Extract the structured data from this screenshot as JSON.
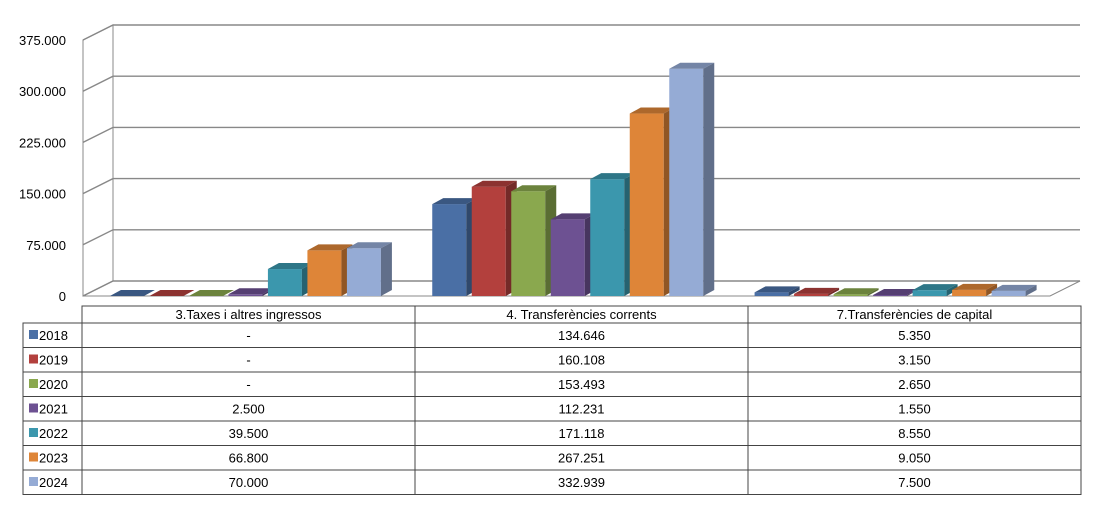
{
  "chart_data": {
    "type": "bar",
    "categories": [
      "3.Taxes i altres ingressos",
      "4. Transferències corrents",
      "7.Transferències de capital"
    ],
    "series": [
      {
        "name": "2018",
        "color": "#4a6fa5",
        "values": [
          0,
          134646,
          5350
        ],
        "labels": [
          "-",
          "134.646",
          "5.350"
        ]
      },
      {
        "name": "2019",
        "color": "#b3403d",
        "values": [
          0,
          160108,
          3150
        ],
        "labels": [
          "-",
          "160.108",
          "3.150"
        ]
      },
      {
        "name": "2020",
        "color": "#8aa84e",
        "values": [
          0,
          153493,
          2650
        ],
        "labels": [
          "-",
          "153.493",
          "2.650"
        ]
      },
      {
        "name": "2021",
        "color": "#6d5192",
        "values": [
          2500,
          112231,
          1550
        ],
        "labels": [
          "2.500",
          "112.231",
          "1.550"
        ]
      },
      {
        "name": "2022",
        "color": "#3b97ad",
        "values": [
          39500,
          171118,
          8550
        ],
        "labels": [
          "39.500",
          "171.118",
          "8.550"
        ]
      },
      {
        "name": "2023",
        "color": "#de8538",
        "values": [
          66800,
          267251,
          9050
        ],
        "labels": [
          "66.800",
          "267.251",
          "9.050"
        ]
      },
      {
        "name": "2024",
        "color": "#95abd5",
        "values": [
          70000,
          332939,
          7500
        ],
        "labels": [
          "70.000",
          "332.939",
          "7.500"
        ]
      }
    ],
    "yticks": [
      "0",
      "75.000",
      "150.000",
      "225.000",
      "300.000",
      "375.000"
    ],
    "ylim": [
      0,
      375000
    ],
    "grid": true,
    "legend": "data-table"
  }
}
